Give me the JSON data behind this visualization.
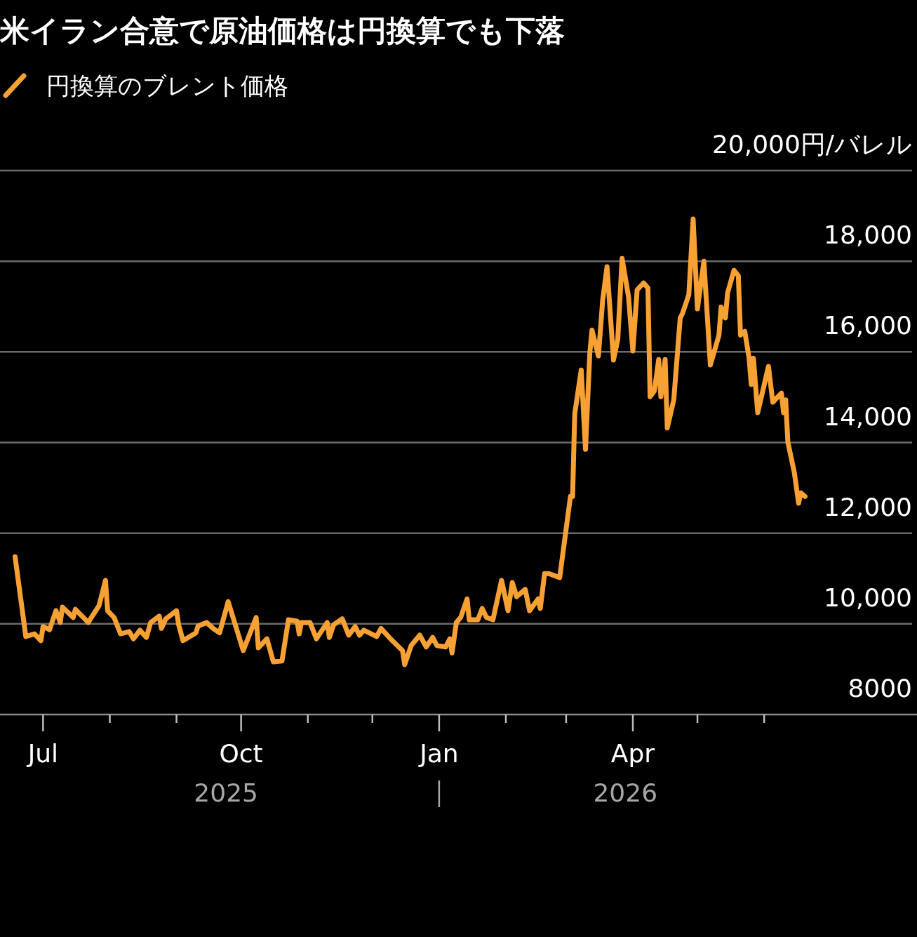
{
  "chart_data": {
    "type": "line",
    "title": "米イラン合意で原油価格は円換算でも下落",
    "legend": "top left",
    "grid": "y",
    "xlim": [
      "2025-06-11",
      "2026-08-11"
    ],
    "xticks": [
      {
        "value": "2025-07-01",
        "label": "Jul"
      },
      {
        "value": "2025-08-01",
        "label": null
      },
      {
        "value": "2025-09-01",
        "label": null
      },
      {
        "value": "2025-10-01",
        "label": "Oct"
      },
      {
        "value": "2025-11-01",
        "label": null
      },
      {
        "value": "2025-12-01",
        "label": null
      },
      {
        "value": "2026-01-01",
        "label": "Jan"
      },
      {
        "value": "2026-02-01",
        "label": null
      },
      {
        "value": "2026-03-01",
        "label": null
      },
      {
        "value": "2026-04-01",
        "label": "Apr"
      },
      {
        "value": "2026-05-01",
        "label": null
      },
      {
        "value": "2026-06-01",
        "label": null
      }
    ],
    "ylim": [
      8000,
      20000
    ],
    "yticks": [
      8000,
      {
        "value": 10000,
        "label": "10,000"
      },
      {
        "value": 12000,
        "label": "12,000"
      },
      {
        "value": 14000,
        "label": "14,000"
      },
      {
        "value": 16000,
        "label": "16,000"
      },
      {
        "value": 18000,
        "label": "18,000"
      },
      {
        "value": 20000,
        "label": "20,000円/バレル"
      }
    ],
    "annotations": [
      "2025",
      "2026"
    ],
    "series": [
      {
        "name": "円換算のブレント価格",
        "color": "#f7a134",
        "x": [
          "2025-06-18",
          "2025-06-23",
          "2025-06-27",
          "2025-06-30",
          "2025-07-01",
          "2025-07-04",
          "2025-07-07",
          "2025-07-09",
          "2025-07-10",
          "2025-07-15",
          "2025-07-16",
          "2025-07-22",
          "2025-07-24",
          "2025-07-27",
          "2025-07-30",
          "2025-07-31",
          "2025-08-03",
          "2025-08-06",
          "2025-08-10",
          "2025-08-12",
          "2025-08-15",
          "2025-08-18",
          "2025-08-20",
          "2025-08-24",
          "2025-08-25",
          "2025-08-27",
          "2025-09-01",
          "2025-09-02",
          "2025-09-04",
          "2025-09-10",
          "2025-09-11",
          "2025-09-15",
          "2025-09-18",
          "2025-09-21",
          "2025-09-25",
          "2025-10-02",
          "2025-10-08",
          "2025-10-09",
          "2025-10-13",
          "2025-10-16",
          "2025-10-20",
          "2025-10-23",
          "2025-10-27",
          "2025-10-28",
          "2025-10-29",
          "2025-11-02",
          "2025-11-05",
          "2025-11-10",
          "2025-11-11",
          "2025-11-13",
          "2025-11-17",
          "2025-11-20",
          "2025-11-23",
          "2025-11-25",
          "2025-11-27",
          "2025-12-03",
          "2025-12-05",
          "2025-12-10",
          "2025-12-15",
          "2025-12-16",
          "2025-12-19",
          "2025-12-23",
          "2025-12-26",
          "2025-12-29",
          "2025-12-31",
          "2026-01-04",
          "2026-01-06",
          "2026-01-07",
          "2026-01-09",
          "2026-01-11",
          "2026-01-14",
          "2026-01-15",
          "2026-01-19",
          "2026-01-21",
          "2026-01-23",
          "2026-01-26",
          "2026-01-30",
          "2026-02-02",
          "2026-02-04",
          "2026-02-06",
          "2026-02-10",
          "2026-02-12",
          "2026-02-16",
          "2026-02-17",
          "2026-02-19",
          "2026-02-21",
          "2026-02-26",
          "2026-03-03",
          "2026-03-04",
          "2026-03-05",
          "2026-03-08",
          "2026-03-10",
          "2026-03-12",
          "2026-03-13",
          "2026-03-16",
          "2026-03-18",
          "2026-03-20",
          "2026-03-23",
          "2026-03-25",
          "2026-03-27",
          "2026-03-30",
          "2026-04-01",
          "2026-04-03",
          "2026-04-06",
          "2026-04-08",
          "2026-04-09",
          "2026-04-11",
          "2026-04-13",
          "2026-04-14",
          "2026-04-16",
          "2026-04-17",
          "2026-04-20",
          "2026-04-23",
          "2026-04-24",
          "2026-04-27",
          "2026-04-29",
          "2026-05-01",
          "2026-05-04",
          "2026-05-07",
          "2026-05-11",
          "2026-05-12",
          "2026-05-14",
          "2026-05-15",
          "2026-05-18",
          "2026-05-20",
          "2026-05-21",
          "2026-05-23",
          "2026-05-25",
          "2026-05-26",
          "2026-05-27",
          "2026-05-29",
          "2026-06-03",
          "2026-06-05",
          "2026-06-09",
          "2026-06-10",
          "2026-06-11",
          "2026-06-12",
          "2026-06-15",
          "2026-06-17",
          "2026-06-18",
          "2026-06-20"
        ],
        "values": [
          11480,
          9720,
          9780,
          9630,
          9940,
          9870,
          10290,
          10030,
          10370,
          10140,
          10320,
          10030,
          10180,
          10400,
          10960,
          10290,
          10140,
          9780,
          9830,
          9670,
          9860,
          9700,
          10030,
          10170,
          9900,
          10110,
          10290,
          9980,
          9630,
          9800,
          9950,
          10030,
          9900,
          9800,
          10490,
          9410,
          10140,
          9470,
          9670,
          9160,
          9180,
          10090,
          10060,
          9780,
          10030,
          10030,
          9670,
          10030,
          9700,
          9980,
          10110,
          9750,
          9940,
          9750,
          9860,
          9720,
          9900,
          9640,
          9410,
          9100,
          9520,
          9750,
          9490,
          9700,
          9520,
          9490,
          9670,
          9360,
          10030,
          10140,
          10550,
          10090,
          10090,
          10340,
          10140,
          10090,
          10960,
          10290,
          10910,
          10600,
          10760,
          10290,
          10550,
          10340,
          11110,
          11110,
          11020,
          12810,
          12810,
          14630,
          15600,
          13850,
          15970,
          16480,
          15910,
          17150,
          17880,
          15820,
          16280,
          18060,
          17210,
          16020,
          17370,
          17520,
          17410,
          15010,
          15140,
          15830,
          15010,
          15830,
          14320,
          14940,
          16750,
          16840,
          17260,
          18930,
          16950,
          18000,
          15710,
          16370,
          16990,
          16750,
          17300,
          17800,
          17680,
          16370,
          16450,
          15860,
          15280,
          15860,
          14660,
          15680,
          14890,
          15090,
          14660,
          14940,
          14010,
          13340,
          12660,
          12890,
          12810
        ]
      }
    ]
  }
}
